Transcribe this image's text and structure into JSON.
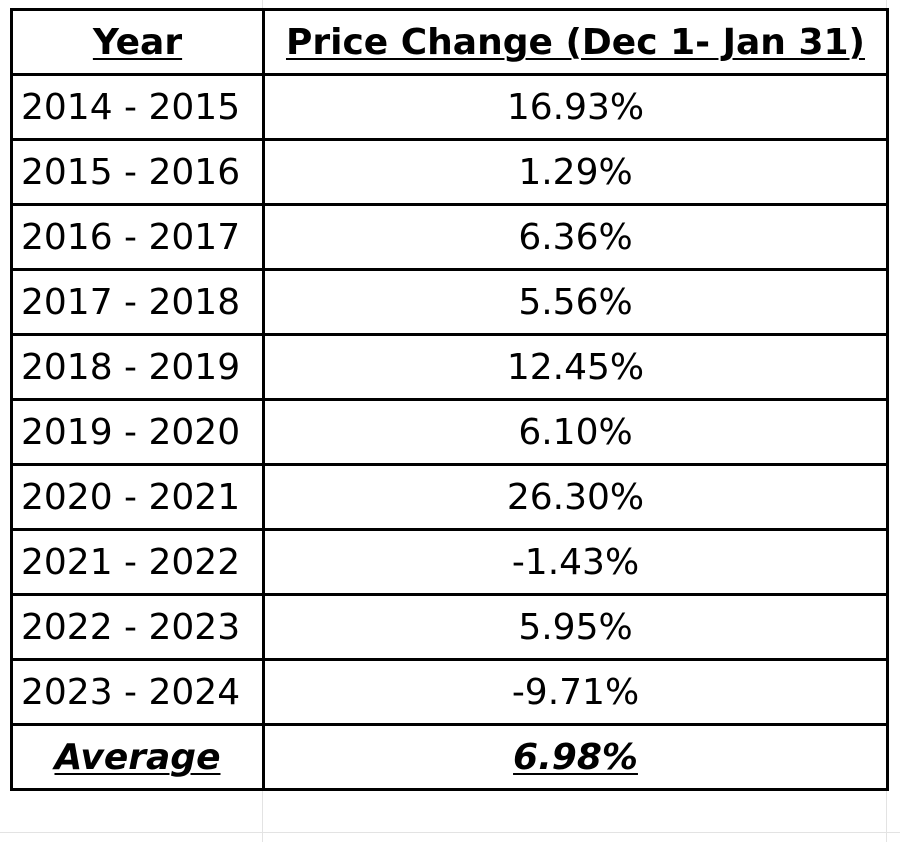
{
  "table": {
    "headers": {
      "year": "Year",
      "price_change": "Price Change (Dec 1- Jan 31)"
    },
    "rows": [
      {
        "year": "2014 - 2015",
        "change": "16.93%"
      },
      {
        "year": "2015 - 2016",
        "change": "1.29%"
      },
      {
        "year": "2016 - 2017",
        "change": "6.36%"
      },
      {
        "year": "2017 - 2018",
        "change": "5.56%"
      },
      {
        "year": "2018 - 2019",
        "change": "12.45%"
      },
      {
        "year": "2019 - 2020",
        "change": "6.10%"
      },
      {
        "year": "2020 - 2021",
        "change": "26.30%"
      },
      {
        "year": "2021 - 2022",
        "change": "-1.43%"
      },
      {
        "year": "2022 - 2023",
        "change": "5.95%"
      },
      {
        "year": "2023 - 2024",
        "change": "-9.71%"
      }
    ],
    "average": {
      "label": "Average",
      "value": "6.98%"
    }
  }
}
